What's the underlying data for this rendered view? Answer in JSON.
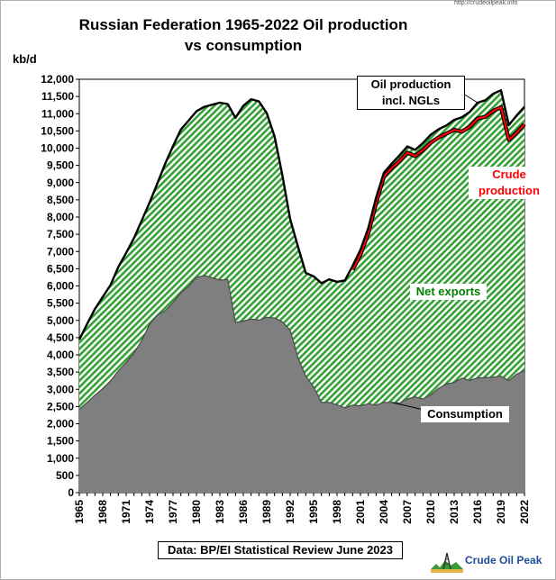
{
  "chart_data": {
    "type": "area",
    "title": "Russian  Federation 1965-2022 Oil production vs consumption",
    "title_lines": [
      "Russian  Federation 1965-2022 Oil production",
      "vs consumption"
    ],
    "ylabel": "kb/d",
    "xlim": [
      1965,
      2022
    ],
    "ylim": [
      0,
      12000
    ],
    "x_tick_labels": [
      "1965",
      "1968",
      "1971",
      "1974",
      "1977",
      "1980",
      "1983",
      "1986",
      "1989",
      "1992",
      "1995",
      "1998",
      "2001",
      "2004",
      "2007",
      "2010",
      "2013",
      "2016",
      "2019",
      "2022"
    ],
    "y_tick_labels": [
      "0",
      "500",
      "1,000",
      "1,500",
      "2,000",
      "2,500",
      "3,000",
      "3,500",
      "4,000",
      "4,500",
      "5,000",
      "5,500",
      "6,000",
      "6,500",
      "7,000",
      "7,500",
      "8,000",
      "8,500",
      "9,000",
      "9,500",
      "10,000",
      "10,500",
      "11,000",
      "11,500",
      "12,000"
    ],
    "grid": false,
    "years": [
      1965,
      1966,
      1967,
      1968,
      1969,
      1970,
      1971,
      1972,
      1973,
      1974,
      1975,
      1976,
      1977,
      1978,
      1979,
      1980,
      1981,
      1982,
      1983,
      1984,
      1985,
      1986,
      1987,
      1988,
      1989,
      1990,
      1991,
      1992,
      1993,
      1994,
      1995,
      1996,
      1997,
      1998,
      1999,
      2000,
      2001,
      2002,
      2003,
      2004,
      2005,
      2006,
      2007,
      2008,
      2009,
      2010,
      2011,
      2012,
      2013,
      2014,
      2015,
      2016,
      2017,
      2018,
      2019,
      2020,
      2021,
      2022
    ],
    "series": [
      {
        "name": "Oil production incl. NGLs",
        "color": "#000000",
        "values": [
          4440,
          4900,
          5330,
          5680,
          6030,
          6550,
          6960,
          7390,
          7900,
          8420,
          8980,
          9550,
          10060,
          10540,
          10800,
          11070,
          11200,
          11260,
          11320,
          11280,
          10880,
          11230,
          11420,
          11360,
          11020,
          10340,
          9220,
          7940,
          7140,
          6380,
          6280,
          6080,
          6190,
          6120,
          6160,
          6580,
          7050,
          7680,
          8560,
          9290,
          9550,
          9790,
          10050,
          9950,
          10150,
          10390,
          10550,
          10660,
          10820,
          10900,
          11050,
          11320,
          11390,
          11580,
          11680,
          10670,
          10950,
          11200
        ]
      },
      {
        "name": "Crude production",
        "color": "#ff0000",
        "values": [
          null,
          null,
          null,
          null,
          null,
          null,
          null,
          null,
          null,
          null,
          null,
          null,
          null,
          null,
          null,
          null,
          null,
          null,
          null,
          null,
          null,
          null,
          null,
          null,
          null,
          null,
          null,
          null,
          null,
          null,
          null,
          null,
          null,
          null,
          null,
          6470,
          6910,
          7530,
          8400,
          9180,
          9420,
          9620,
          9870,
          9770,
          9940,
          10160,
          10310,
          10420,
          10530,
          10480,
          10620,
          10860,
          10910,
          11080,
          11190,
          10240,
          10450,
          10700
        ]
      },
      {
        "name": "Consumption",
        "color": "#7f7f7f",
        "values": [
          2420,
          2620,
          2830,
          3020,
          3240,
          3540,
          3780,
          4050,
          4420,
          4880,
          5160,
          5280,
          5520,
          5800,
          5990,
          6250,
          6300,
          6240,
          6170,
          6190,
          4940,
          4980,
          5040,
          5010,
          5090,
          5070,
          4960,
          4720,
          3910,
          3380,
          3070,
          2620,
          2620,
          2550,
          2460,
          2540,
          2520,
          2580,
          2540,
          2620,
          2620,
          2600,
          2720,
          2780,
          2720,
          2840,
          3030,
          3150,
          3200,
          3320,
          3260,
          3330,
          3340,
          3350,
          3380,
          3250,
          3440,
          3540
        ]
      }
    ],
    "annotations": {
      "oil_production": "Oil production incl. NGLs",
      "oil_production_lines": [
        "Oil production",
        "incl. NGLs"
      ],
      "crude_production": "Crude production",
      "crude_production_lines": [
        "Crude",
        "production"
      ],
      "net_exports": "Net exports",
      "consumption": "Consumption",
      "source": "Data: BP/EI Statistical Review June 2023"
    }
  },
  "logo": {
    "url": "http://crudeoilpeak.info",
    "name": "Crude Oil Peak"
  }
}
